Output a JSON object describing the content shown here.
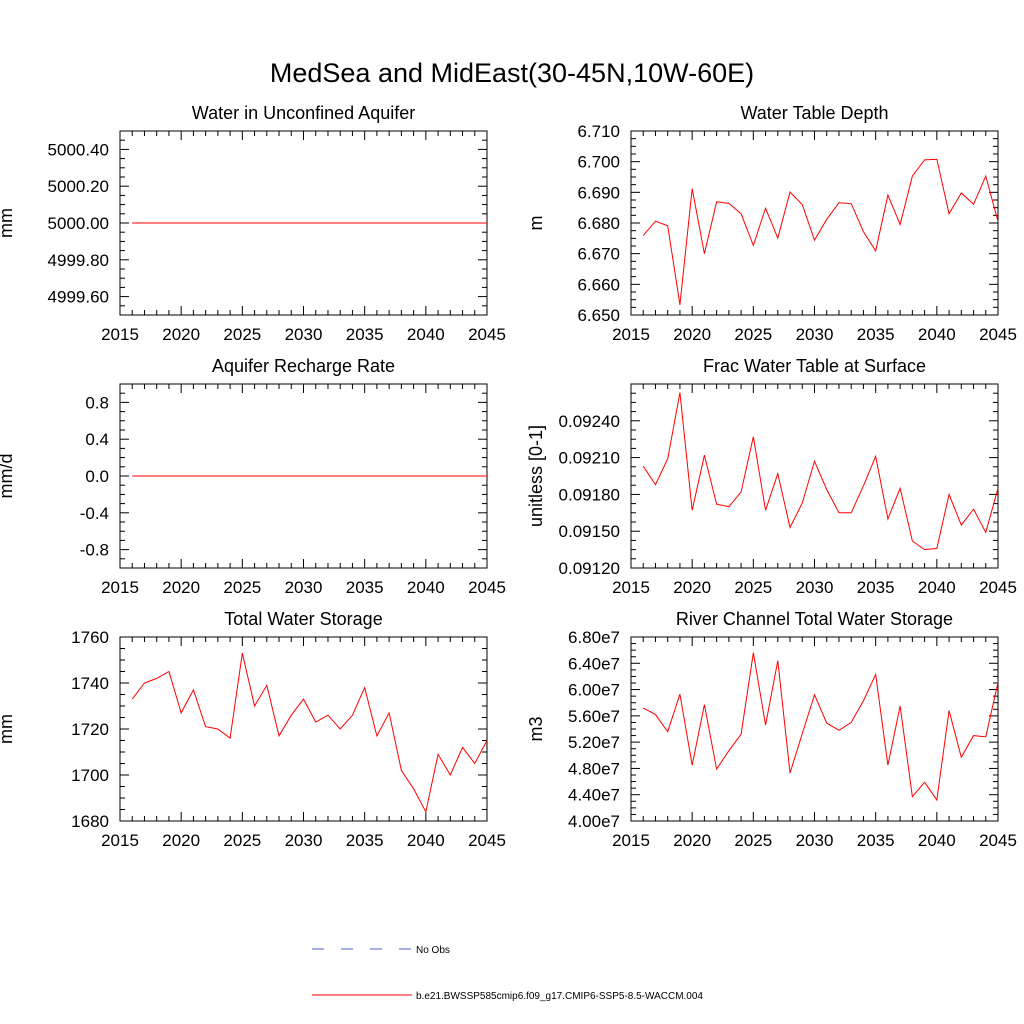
{
  "figure": {
    "title": "MedSea and MidEast(30-45N,10W-60E)"
  },
  "legend": {
    "entries": [
      {
        "label": "No Obs",
        "color": "#4f5fd0",
        "style": "dashed"
      },
      {
        "label": "b.e21.BWSSP585cmip6.f09_g17.CMIP6-SSP5-8.5-WACCM.004",
        "color": "#ff0000",
        "style": "solid"
      }
    ]
  },
  "chart_data": [
    {
      "type": "line",
      "title": "Water in Unconfined Aquifer",
      "ylabel": "mm",
      "xlim": [
        2015,
        2045
      ],
      "ylim": [
        4999.5,
        5000.5
      ],
      "xticks": [
        2015,
        2020,
        2025,
        2030,
        2035,
        2040,
        2045
      ],
      "yticks": [
        4999.6,
        4999.8,
        5000.0,
        5000.2,
        5000.4
      ],
      "ytick_labels": [
        "4999.60",
        "4999.80",
        "5000.00",
        "5000.20",
        "5000.40"
      ],
      "x": [
        2016,
        2045
      ],
      "series": [
        {
          "color": "#ff0000",
          "values": [
            5000.0,
            5000.0
          ]
        }
      ]
    },
    {
      "type": "line",
      "title": "Water Table Depth",
      "ylabel": "m",
      "xlim": [
        2015,
        2045
      ],
      "ylim": [
        6.65,
        6.71
      ],
      "xticks": [
        2015,
        2020,
        2025,
        2030,
        2035,
        2040,
        2045
      ],
      "yticks": [
        6.65,
        6.66,
        6.67,
        6.68,
        6.69,
        6.7,
        6.71
      ],
      "ytick_labels": [
        "6.650",
        "6.660",
        "6.670",
        "6.680",
        "6.690",
        "6.700",
        "6.710"
      ],
      "x": [
        2016,
        2017,
        2018,
        2019,
        2020,
        2021,
        2022,
        2023,
        2024,
        2025,
        2026,
        2027,
        2028,
        2029,
        2030,
        2031,
        2032,
        2033,
        2034,
        2035,
        2036,
        2037,
        2038,
        2039,
        2040,
        2041,
        2042,
        2043,
        2044,
        2045
      ],
      "series": [
        {
          "color": "#ff0000",
          "values": [
            6.6759,
            6.6806,
            6.6791,
            6.6533,
            6.6912,
            6.67,
            6.6869,
            6.6864,
            6.683,
            6.6727,
            6.6848,
            6.6751,
            6.6901,
            6.686,
            6.6744,
            6.6812,
            6.6866,
            6.6863,
            6.6772,
            6.6709,
            6.6891,
            6.6795,
            6.6953,
            6.7006,
            6.7008,
            6.683,
            6.6898,
            6.6861,
            6.6953,
            6.6805
          ]
        }
      ]
    },
    {
      "type": "line",
      "title": "Aquifer Recharge Rate",
      "ylabel": "mm/d",
      "xlim": [
        2015,
        2045
      ],
      "ylim": [
        -1.0,
        1.0
      ],
      "xticks": [
        2015,
        2020,
        2025,
        2030,
        2035,
        2040,
        2045
      ],
      "yticks": [
        -0.8,
        -0.4,
        0.0,
        0.4,
        0.8
      ],
      "ytick_labels": [
        "-0.8",
        "-0.4",
        "0.0",
        "0.4",
        "0.8"
      ],
      "x": [
        2016,
        2045
      ],
      "series": [
        {
          "color": "#ff0000",
          "values": [
            0.0,
            0.0
          ]
        }
      ]
    },
    {
      "type": "line",
      "title": "Frac Water Table at Surface",
      "ylabel": "unitless [0-1]",
      "xlim": [
        2015,
        2045
      ],
      "ylim": [
        0.0912,
        0.0927
      ],
      "xticks": [
        2015,
        2020,
        2025,
        2030,
        2035,
        2040,
        2045
      ],
      "yticks": [
        0.0912,
        0.0915,
        0.0918,
        0.0921,
        0.0924
      ],
      "ytick_labels": [
        "0.09120",
        "0.09150",
        "0.09180",
        "0.09210",
        "0.09240"
      ],
      "x": [
        2016,
        2017,
        2018,
        2019,
        2020,
        2021,
        2022,
        2023,
        2024,
        2025,
        2026,
        2027,
        2028,
        2029,
        2030,
        2031,
        2032,
        2033,
        2034,
        2035,
        2036,
        2037,
        2038,
        2039,
        2040,
        2041,
        2042,
        2043,
        2044,
        2045
      ],
      "series": [
        {
          "color": "#ff0000",
          "values": [
            0.09203,
            0.09188,
            0.09209,
            0.09263,
            0.09167,
            0.09212,
            0.09172,
            0.0917,
            0.09182,
            0.09227,
            0.09167,
            0.09197,
            0.09153,
            0.09173,
            0.09207,
            0.09184,
            0.09165,
            0.09165,
            0.09187,
            0.09211,
            0.0916,
            0.09185,
            0.09142,
            0.09135,
            0.09136,
            0.0918,
            0.09155,
            0.09168,
            0.09149,
            0.09185
          ]
        }
      ]
    },
    {
      "type": "line",
      "title": "Total Water Storage",
      "ylabel": "mm",
      "xlim": [
        2015,
        2045
      ],
      "ylim": [
        1680,
        1760
      ],
      "xticks": [
        2015,
        2020,
        2025,
        2030,
        2035,
        2040,
        2045
      ],
      "yticks": [
        1680,
        1700,
        1720,
        1740,
        1760
      ],
      "ytick_labels": [
        "1680",
        "1700",
        "1720",
        "1740",
        "1760"
      ],
      "x": [
        2016,
        2017,
        2018,
        2019,
        2020,
        2021,
        2022,
        2023,
        2024,
        2025,
        2026,
        2027,
        2028,
        2029,
        2030,
        2031,
        2032,
        2033,
        2034,
        2035,
        2036,
        2037,
        2038,
        2039,
        2040,
        2041,
        2042,
        2043,
        2044,
        2045
      ],
      "series": [
        {
          "color": "#ff0000",
          "values": [
            1733,
            1740,
            1742,
            1745,
            1727,
            1737,
            1721,
            1720,
            1716,
            1753,
            1730,
            1739,
            1717,
            1726,
            1733,
            1723,
            1726,
            1720,
            1726,
            1738,
            1717,
            1727,
            1702,
            1694,
            1684,
            1709,
            1700,
            1712,
            1705,
            1715
          ]
        }
      ]
    },
    {
      "type": "line",
      "title": "River Channel Total Water Storage",
      "ylabel": "m3",
      "xlim": [
        2015,
        2045
      ],
      "ylim": [
        40000000,
        68000000
      ],
      "xticks": [
        2015,
        2020,
        2025,
        2030,
        2035,
        2040,
        2045
      ],
      "yticks": [
        40000000,
        44000000,
        48000000,
        52000000,
        56000000,
        60000000,
        64000000,
        68000000
      ],
      "ytick_labels": [
        "4.00e7",
        "4.40e7",
        "4.80e7",
        "5.20e7",
        "5.60e7",
        "6.00e7",
        "6.40e7",
        "6.80e7"
      ],
      "x": [
        2016,
        2017,
        2018,
        2019,
        2020,
        2021,
        2022,
        2023,
        2024,
        2025,
        2026,
        2027,
        2028,
        2029,
        2030,
        2031,
        2032,
        2033,
        2034,
        2035,
        2036,
        2037,
        2038,
        2039,
        2040,
        2041,
        2042,
        2043,
        2044,
        2045
      ],
      "series": [
        {
          "color": "#ff0000",
          "values": [
            57200000,
            56200000,
            53600000,
            59300000,
            48500000,
            57700000,
            47900000,
            50700000,
            53200000,
            65600000,
            54600000,
            64400000,
            47300000,
            53300000,
            59200000,
            54900000,
            53800000,
            55000000,
            58300000,
            62300000,
            48500000,
            57500000,
            43700000,
            45900000,
            43200000,
            56800000,
            49700000,
            53000000,
            52800000,
            61100000
          ]
        }
      ]
    }
  ]
}
